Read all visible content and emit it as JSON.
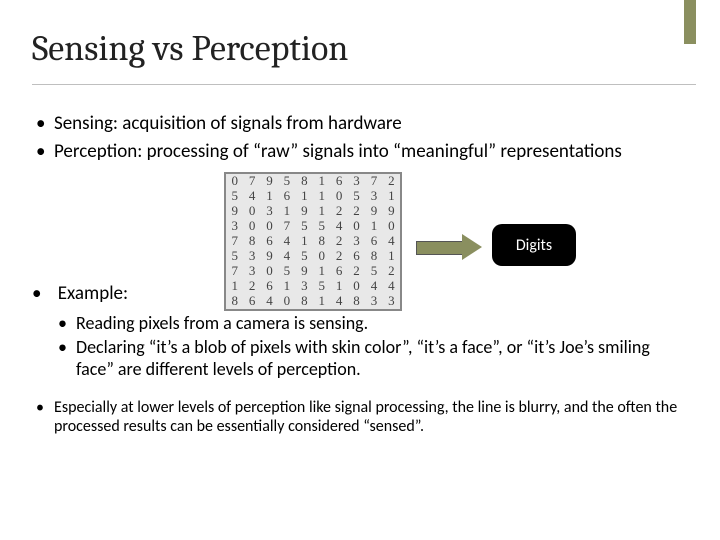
{
  "colors": {
    "accent": "#8a8f5f",
    "rule": "#bfbfbf",
    "badge_bg": "#000000",
    "badge_fg": "#ffffff",
    "mnist_border": "#888888",
    "mnist_bg": "#e8e8e8"
  },
  "title": "Sensing vs Perception",
  "bullets": {
    "b1": "Sensing: acquisition of signals from hardware",
    "b2": "Perception: processing of “raw” signals into “meaningful” representations",
    "example_label": "Example:",
    "sub1": "Reading pixels from a camera is sensing.",
    "sub2": "Declaring “it’s a blob of pixels with skin color”, “it’s a face”, or “it’s Joe’s smiling face” are different levels of perception.",
    "b4": "Especially at lower levels of perception like signal processing, the line is blurry, and the often the processed results can be essentially considered “sensed”."
  },
  "badge": "Digits",
  "mnist": {
    "rows": [
      [
        "0",
        "7",
        "9",
        "5",
        "8",
        "1",
        "6",
        "3",
        "7",
        "2"
      ],
      [
        "5",
        "4",
        "1",
        "6",
        "1",
        "1",
        "0",
        "5",
        "3",
        "1"
      ],
      [
        "9",
        "0",
        "3",
        "1",
        "9",
        "1",
        "2",
        "2",
        "9",
        "9"
      ],
      [
        "3",
        "0",
        "0",
        "7",
        "5",
        "5",
        "4",
        "0",
        "1",
        "0"
      ],
      [
        "7",
        "8",
        "6",
        "4",
        "1",
        "8",
        "2",
        "3",
        "6",
        "4"
      ],
      [
        "5",
        "3",
        "9",
        "4",
        "5",
        "0",
        "2",
        "6",
        "8",
        "1"
      ],
      [
        "7",
        "3",
        "0",
        "5",
        "9",
        "1",
        "6",
        "2",
        "5",
        "2"
      ],
      [
        "1",
        "2",
        "6",
        "1",
        "3",
        "5",
        "1",
        "0",
        "4",
        "4"
      ],
      [
        "8",
        "6",
        "4",
        "0",
        "8",
        "1",
        "4",
        "8",
        "3",
        "3"
      ]
    ]
  }
}
